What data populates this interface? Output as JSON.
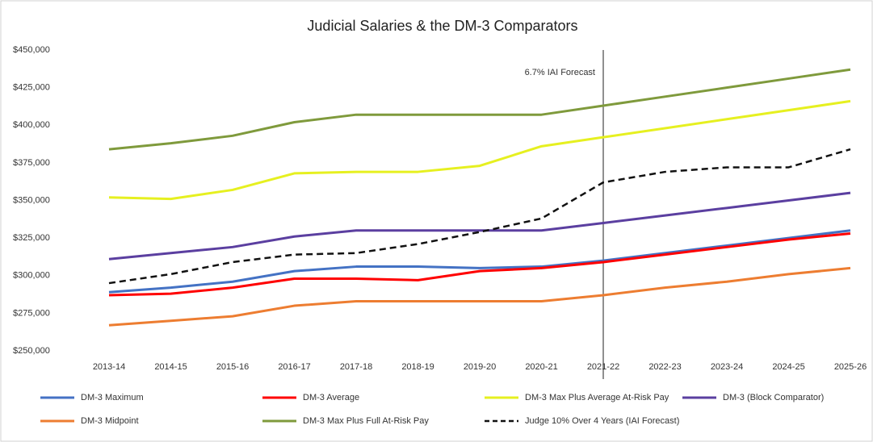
{
  "chart_data": {
    "type": "line",
    "title": "Judicial Salaries & the DM-3 Comparators",
    "categories": [
      "2013-14",
      "2014-15",
      "2015-16",
      "2016-17",
      "2017-18",
      "2018-19",
      "2019-20",
      "2020-21",
      "2021-22",
      "2022-23",
      "2023-24",
      "2024-25",
      "2025-26"
    ],
    "ylim": [
      250000,
      450000
    ],
    "yticks": [
      {
        "value": 250000,
        "label": "$250,000"
      },
      {
        "value": 275000,
        "label": "$275,000"
      },
      {
        "value": 300000,
        "label": "$300,000"
      },
      {
        "value": 325000,
        "label": "$325,000"
      },
      {
        "value": 350000,
        "label": "$350,000"
      },
      {
        "value": 375000,
        "label": "$375,000"
      },
      {
        "value": 400000,
        "label": "$400,000"
      },
      {
        "value": 425000,
        "label": "$425,000"
      },
      {
        "value": 450000,
        "label": "$450,000"
      }
    ],
    "grid": false,
    "legend": "bottom",
    "vline": {
      "category": "2021-22",
      "label": "6.7% IAI Forecast"
    },
    "series": [
      {
        "name": "DM-3 Maximum",
        "color": "#4472c4",
        "values": [
          289000,
          292000,
          296000,
          303000,
          306000,
          306000,
          305000,
          306000,
          310000,
          315000,
          320000,
          325000,
          330000
        ]
      },
      {
        "name": "DM-3 Average",
        "color": "#ff0000",
        "values": [
          287000,
          288000,
          292000,
          298000,
          298000,
          297000,
          303000,
          305000,
          309000,
          314000,
          319000,
          324000,
          328000
        ]
      },
      {
        "name": "DM-3 Max Plus Average At-Risk Pay",
        "color": "#e6f020",
        "values": [
          352000,
          351000,
          357000,
          368000,
          369000,
          369000,
          373000,
          386000,
          392000,
          398000,
          404000,
          410000,
          416000
        ]
      },
      {
        "name": "DM-3 (Block Comparator)",
        "color": "#5b3fa0",
        "values": [
          311000,
          315000,
          319000,
          326000,
          330000,
          330000,
          330000,
          330000,
          335000,
          340000,
          345000,
          350000,
          355000
        ]
      },
      {
        "name": "DM-3 Midpoint",
        "color": "#ed7d31",
        "values": [
          267000,
          270000,
          273000,
          280000,
          283000,
          283000,
          283000,
          283000,
          287000,
          292000,
          296000,
          301000,
          305000
        ]
      },
      {
        "name": "DM-3 Max Plus Full At-Risk Pay",
        "color": "#7f9a3c",
        "values": [
          384000,
          388000,
          393000,
          402000,
          407000,
          407000,
          407000,
          407000,
          413000,
          419000,
          425000,
          431000,
          437000
        ]
      },
      {
        "name": "Judge 10% Over 4 Years (IAI Forecast)",
        "color": "#111111",
        "dashed": true,
        "values": [
          295000,
          301000,
          309000,
          314000,
          315000,
          321000,
          329000,
          338000,
          362000,
          369000,
          372000,
          372000,
          384000
        ]
      }
    ]
  }
}
